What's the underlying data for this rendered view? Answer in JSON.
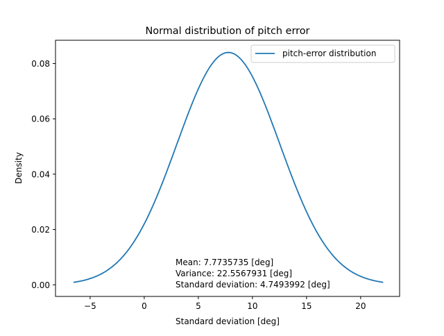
{
  "chart_data": {
    "type": "line",
    "title": "Normal distribution of pitch error",
    "xlabel": "Standard deviation [deg]",
    "ylabel": "Density",
    "xlim": [
      -8.2,
      23.6
    ],
    "ylim": [
      -0.0042,
      0.0884
    ],
    "xticks": [
      -5,
      0,
      5,
      10,
      15,
      20
    ],
    "xtick_labels": [
      "−5",
      "0",
      "5",
      "10",
      "15",
      "20"
    ],
    "yticks": [
      0.0,
      0.02,
      0.04,
      0.06,
      0.08
    ],
    "ytick_labels": [
      "0.00",
      "0.02",
      "0.04",
      "0.06",
      "0.08"
    ],
    "grid": false,
    "legend": {
      "position": "top-right",
      "entries": [
        "pitch-error distribution"
      ]
    },
    "series": [
      {
        "name": "pitch-error distribution",
        "color": "#1f77b4",
        "distribution": "normal",
        "mean": 7.7735735,
        "std": 4.7493992,
        "x_range": [
          -6.475,
          22.022
        ]
      }
    ],
    "annotation": {
      "lines": [
        "Mean: 7.7735735 [deg]",
        "Variance: 22.5567931 [deg]",
        "Standard deviation: 4.7493992 [deg]"
      ]
    }
  }
}
